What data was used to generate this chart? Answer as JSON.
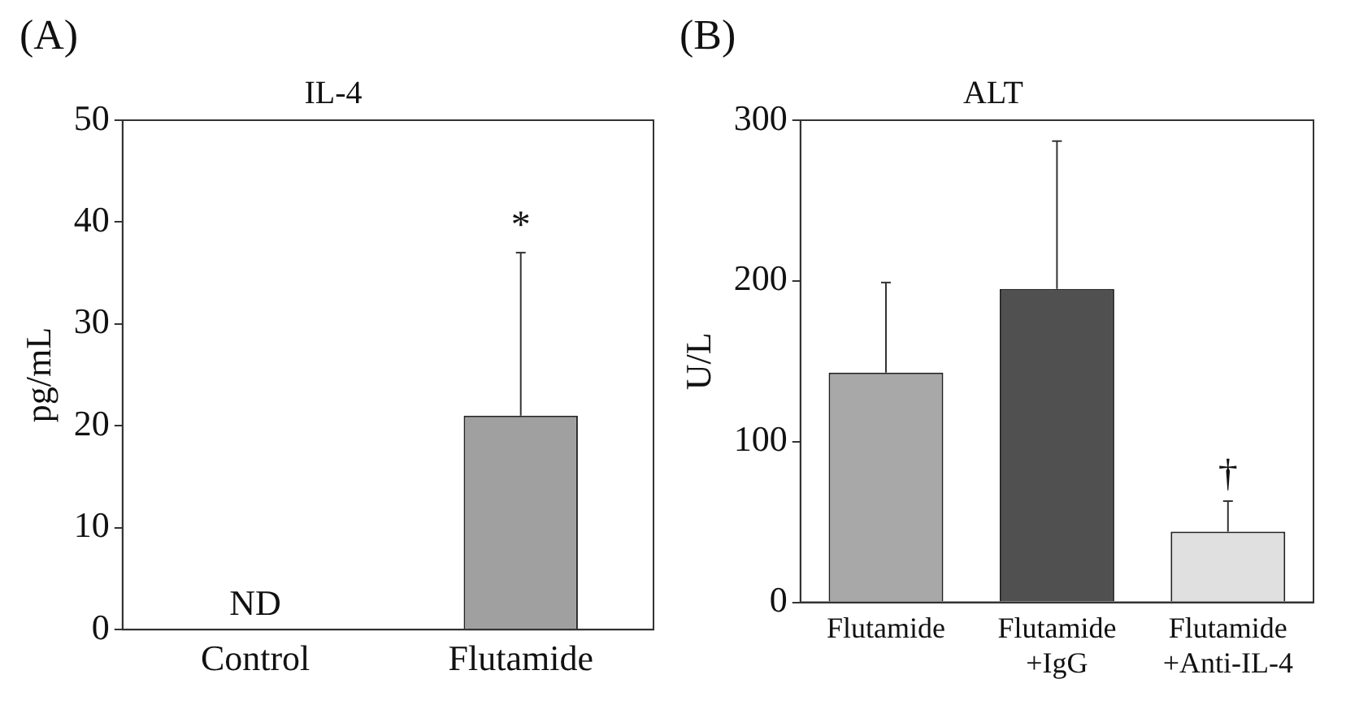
{
  "chart_data": [
    {
      "type": "bar",
      "title": "IL-4",
      "ylabel": "pg/mL",
      "categories": [
        "Control",
        "Flutamide"
      ],
      "values": [
        null,
        21
      ],
      "value_labels": [
        "ND",
        null
      ],
      "errors": [
        null,
        [
          21,
          37
        ]
      ],
      "colors": [
        "#a0a0a0",
        "#a0a0a0"
      ],
      "ylim": [
        0,
        50
      ],
      "yticks": [
        0,
        10,
        20,
        30,
        40,
        50
      ],
      "grid": false,
      "legend": false,
      "annotations": [
        "(A)",
        {
          "text": "*",
          "x": "Flutamide",
          "y": 37
        }
      ]
    },
    {
      "type": "bar",
      "title": "ALT",
      "ylabel": "U/L",
      "categories": [
        "Flutamide",
        "Flutamide\n+IgG",
        "Flutamide\n+Anti-IL-4"
      ],
      "values": [
        143,
        195,
        44
      ],
      "errors": [
        [
          143,
          199
        ],
        [
          195,
          287
        ],
        [
          44,
          63
        ]
      ],
      "colors": [
        "#a8a8a8",
        "#505050",
        "#e0e0e0"
      ],
      "ylim": [
        0,
        300
      ],
      "yticks": [
        0,
        100,
        200,
        300
      ],
      "grid": false,
      "legend": false,
      "annotations": [
        "(B)",
        {
          "text": "†",
          "x": "Flutamide\n+Anti-IL-4",
          "y": 63
        }
      ]
    }
  ]
}
